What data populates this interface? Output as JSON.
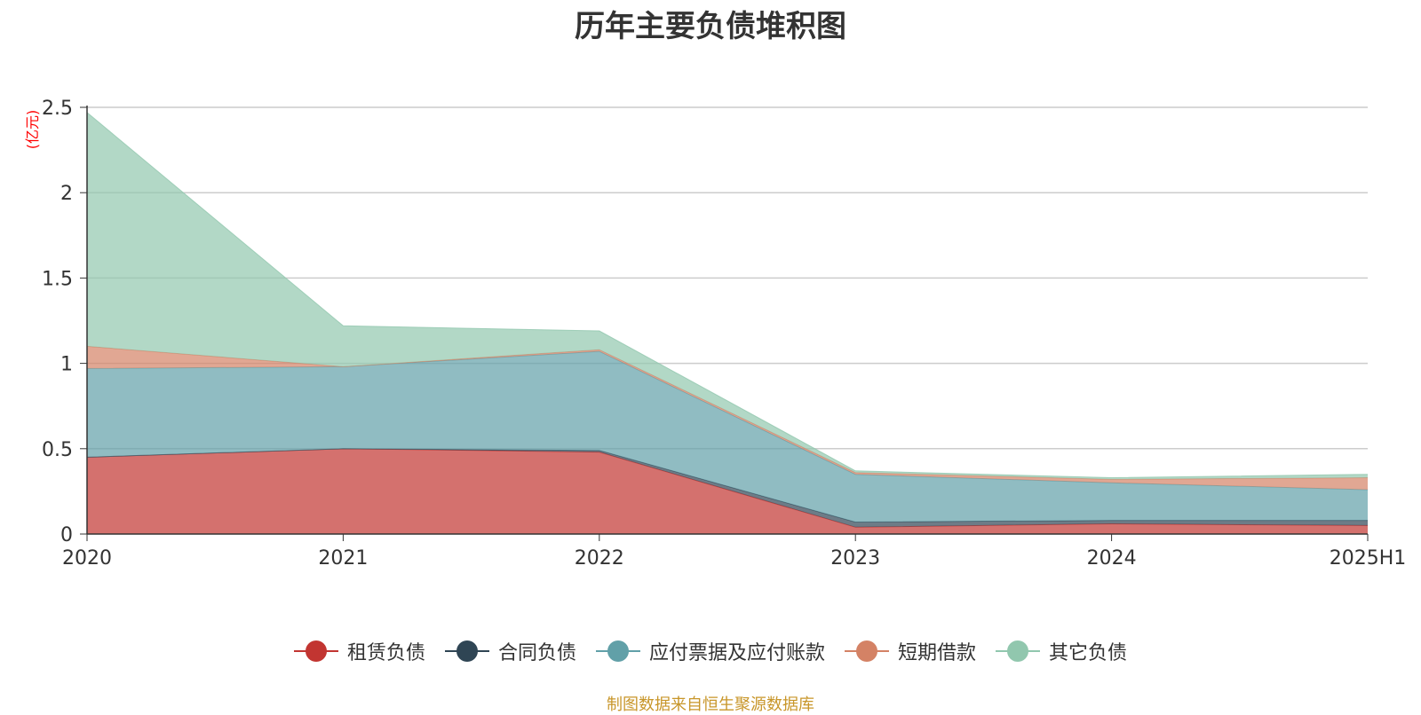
{
  "chart_data": {
    "type": "area",
    "stacked": true,
    "title": "历年主要负债堆积图",
    "unit_label": "(亿元)",
    "categories": [
      "2020",
      "2021",
      "2022",
      "2023",
      "2024",
      "2025H1"
    ],
    "ylim": [
      0,
      2.5
    ],
    "yticks": [
      0,
      0.5,
      1,
      1.5,
      2,
      2.5
    ],
    "ytick_labels": [
      "0",
      "0.5",
      "1",
      "1.5",
      "2",
      "2.5"
    ],
    "grid": true,
    "legend_position": "bottom",
    "series": [
      {
        "name": "租赁负债",
        "color": "#c23531",
        "values": [
          0.45,
          0.5,
          0.48,
          0.04,
          0.06,
          0.05
        ]
      },
      {
        "name": "合同负债",
        "color": "#2f4554",
        "values": [
          0.0,
          0.0,
          0.01,
          0.03,
          0.02,
          0.03
        ]
      },
      {
        "name": "应付票据及应付账款",
        "color": "#61a0a8",
        "values": [
          0.52,
          0.48,
          0.58,
          0.28,
          0.22,
          0.18
        ]
      },
      {
        "name": "短期借款",
        "color": "#d48265",
        "values": [
          0.13,
          0.0,
          0.01,
          0.01,
          0.02,
          0.07
        ]
      },
      {
        "name": "其它负债",
        "color": "#91c7ae",
        "values": [
          1.37,
          0.24,
          0.11,
          0.01,
          0.01,
          0.02
        ]
      }
    ],
    "source_note": "制图数据来自恒生聚源数据库"
  }
}
